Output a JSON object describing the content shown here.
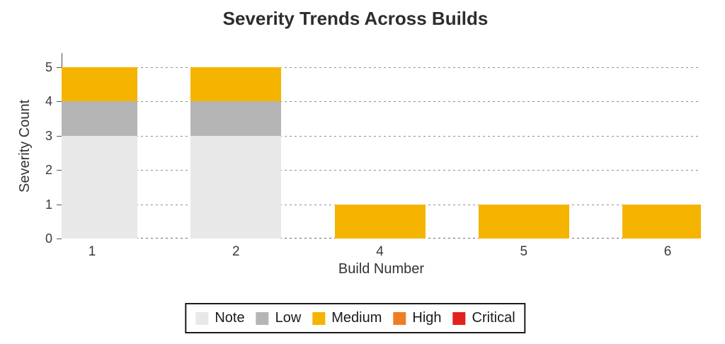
{
  "chart_data": {
    "type": "bar",
    "stacked": true,
    "title": "Severity Trends Across Builds",
    "xlabel": "Build Number",
    "ylabel": "Severity Count",
    "categories": [
      "1",
      "2",
      "4",
      "5",
      "6"
    ],
    "series": [
      {
        "name": "Note",
        "color": "#E8E8E8",
        "values": [
          3,
          3,
          0,
          0,
          0
        ]
      },
      {
        "name": "Low",
        "color": "#B5B5B5",
        "values": [
          1,
          1,
          0,
          0,
          0
        ]
      },
      {
        "name": "Medium",
        "color": "#F4B400",
        "values": [
          1,
          1,
          1,
          1,
          1
        ]
      },
      {
        "name": "High",
        "color": "#EF7D22",
        "values": [
          0,
          0,
          0,
          0,
          0
        ]
      },
      {
        "name": "Critical",
        "color": "#E2211C",
        "values": [
          0,
          0,
          0,
          0,
          0
        ]
      }
    ],
    "ylim": [
      0,
      5
    ],
    "yticks": [
      0,
      1,
      2,
      3,
      4,
      5
    ],
    "grid": "horizontal-dashed",
    "legend_position": "bottom",
    "legend": [
      "Note",
      "Low",
      "Medium",
      "High",
      "Critical"
    ]
  },
  "colors": {
    "grid": "#8f8f8f",
    "axis": "#555555",
    "title_text": "#2d2d2d",
    "tick_text": "#3a3a3a"
  }
}
